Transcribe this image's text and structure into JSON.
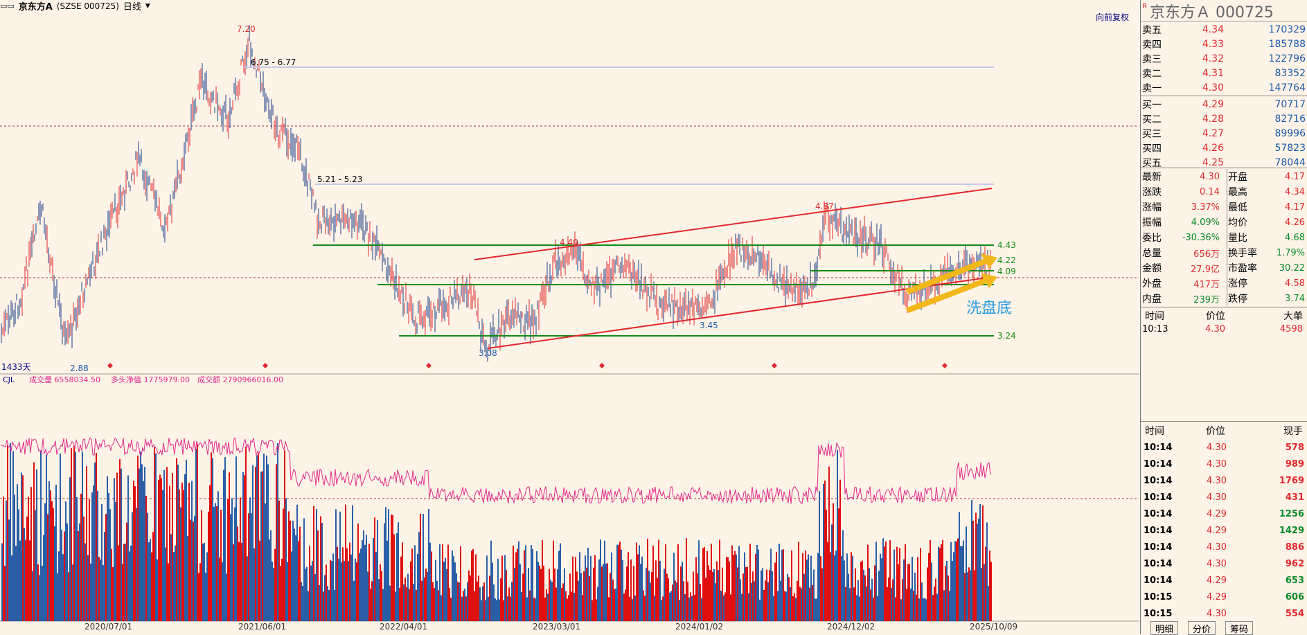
{
  "header": {
    "stock_name": "京东方A",
    "code_text": "(SZSE 000725)",
    "period": "日线",
    "restore_button": "向前复权"
  },
  "main_chart": {
    "price_labels": {
      "high": "7.20",
      "low": "2.88",
      "range_a": "6.75 - 6.77",
      "range_b": "5.21 - 5.23",
      "p440": "4.40",
      "p487": "4.87",
      "p345": "3.45",
      "p308": "3.08",
      "p443": "4.43",
      "p422": "4.22",
      "p409": "4.09",
      "p324": "3.24"
    },
    "days_label": "1433天",
    "annotation": "洗盘底"
  },
  "volume_chart": {
    "indicator": "CJL",
    "vol_label": "成交量 6558034.50",
    "net_label": "多头净值 1775979.00",
    "amt_label": "成交额 2790966016.00"
  },
  "x_axis": [
    "2020/07/01",
    "2021/06/01",
    "2022/04/01",
    "2023/03/01",
    "2024/01/02",
    "2024/12/02",
    "2025/10/09"
  ],
  "side": {
    "title": "京东方Ａ  000725",
    "sells": [
      {
        "label": "卖五",
        "price": "4.34",
        "vol": "170329"
      },
      {
        "label": "卖四",
        "price": "4.33",
        "vol": "185788"
      },
      {
        "label": "卖三",
        "price": "4.32",
        "vol": "122796"
      },
      {
        "label": "卖二",
        "price": "4.31",
        "vol": "83352"
      },
      {
        "label": "卖一",
        "price": "4.30",
        "vol": "147764"
      }
    ],
    "buys": [
      {
        "label": "买一",
        "price": "4.29",
        "vol": "70717"
      },
      {
        "label": "买二",
        "price": "4.28",
        "vol": "82716"
      },
      {
        "label": "买三",
        "price": "4.27",
        "vol": "89996"
      },
      {
        "label": "买四",
        "price": "4.26",
        "vol": "57823"
      },
      {
        "label": "买五",
        "price": "4.25",
        "vol": "78044"
      }
    ],
    "quote_left": [
      {
        "label": "最新",
        "value": "4.30"
      },
      {
        "label": "涨跌",
        "value": "0.14"
      },
      {
        "label": "涨幅",
        "value": "3.37%"
      },
      {
        "label": "振幅",
        "value": "4.09%"
      },
      {
        "label": "委比",
        "value": "-30.36%"
      },
      {
        "label": "总量",
        "value": "656万"
      },
      {
        "label": "金额",
        "value": "27.9亿"
      },
      {
        "label": "外盘",
        "value": "417万"
      },
      {
        "label": "内盘",
        "value": "239万"
      }
    ],
    "quote_right": [
      {
        "label": "开盘",
        "value": "4.17"
      },
      {
        "label": "最高",
        "value": "4.34"
      },
      {
        "label": "最低",
        "value": "4.17"
      },
      {
        "label": "均价",
        "value": "4.26"
      },
      {
        "label": "量比",
        "value": "4.68"
      },
      {
        "label": "换手率",
        "value": "1.79%"
      },
      {
        "label": "市盈率",
        "value": "30.22"
      },
      {
        "label": "涨停",
        "value": "4.58"
      },
      {
        "label": "跌停",
        "value": "3.74"
      }
    ],
    "big_header": {
      "time": "时间",
      "price": "价位",
      "big": "大单"
    },
    "big_rows": [
      {
        "time": "10:13",
        "price": "4.30",
        "vol": "4598"
      }
    ],
    "tick_header": {
      "time": "时间",
      "price": "价位",
      "vol": "现手"
    },
    "ticks": [
      {
        "time": "10:14",
        "price": "4.30",
        "vol": "578",
        "dir": "up"
      },
      {
        "time": "10:14",
        "price": "4.30",
        "vol": "989",
        "dir": "up"
      },
      {
        "time": "10:14",
        "price": "4.30",
        "vol": "1769",
        "dir": "up"
      },
      {
        "time": "10:14",
        "price": "4.30",
        "vol": "431",
        "dir": "up"
      },
      {
        "time": "10:14",
        "price": "4.29",
        "vol": "1256",
        "dir": "down"
      },
      {
        "time": "10:14",
        "price": "4.29",
        "vol": "1429",
        "dir": "down"
      },
      {
        "time": "10:14",
        "price": "4.30",
        "vol": "886",
        "dir": "up"
      },
      {
        "time": "10:14",
        "price": "4.30",
        "vol": "962",
        "dir": "up"
      },
      {
        "time": "10:14",
        "price": "4.29",
        "vol": "653",
        "dir": "down"
      },
      {
        "time": "10:15",
        "price": "4.29",
        "vol": "606",
        "dir": "down"
      },
      {
        "time": "10:15",
        "price": "4.30",
        "vol": "554",
        "dir": "up"
      }
    ],
    "tabs": [
      "明细",
      "分价",
      "筹码"
    ]
  },
  "colors": {
    "up": "#e0292e",
    "down": "#0a8a2a",
    "bg": "#fdf3e7",
    "trend": "#e0292e",
    "support": "#138a13",
    "arrow": "#f2b81a",
    "annotation": "#2b9be0"
  }
}
